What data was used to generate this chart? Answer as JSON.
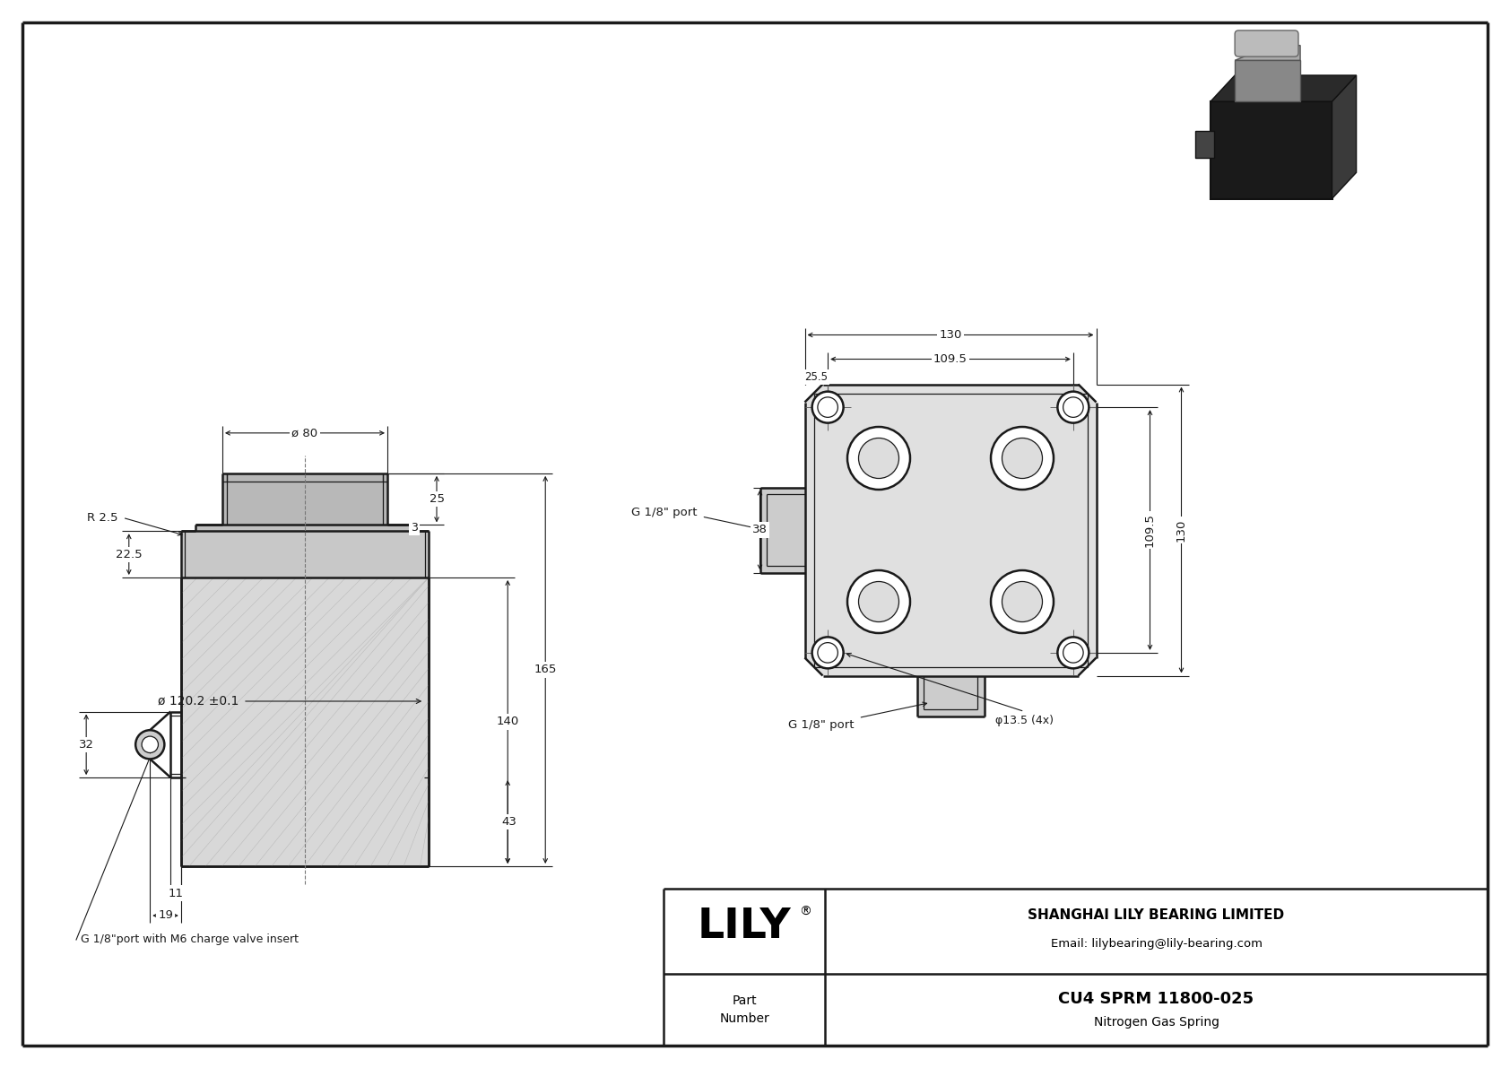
{
  "bg_color": "#ffffff",
  "line_color": "#1a1a1a",
  "title": "CU4 SPRM 11800-025",
  "subtitle": "Nitrogen Gas Spring",
  "company": "SHANGHAI LILY BEARING LIMITED",
  "email": "Email: lilybearing@lily-bearing.com",
  "part_label": "Part\nNumber",
  "dims_left": {
    "phi80": "ø 80",
    "phi120": "ø 120.2 ±0.1",
    "d165": "165",
    "d140": "140",
    "d43": "43",
    "d25": "25",
    "d3": "3",
    "d22_5": "22.5",
    "dR2_5": "R 2.5",
    "d32": "32",
    "d19": "19",
    "d11": "11",
    "port_label": "G 1/8\"port with M6 charge valve insert"
  },
  "dims_right": {
    "d130": "130",
    "d109_5_h": "109.5",
    "d25_5": "25.5",
    "d38": "38",
    "d109_5_v": "109.5",
    "d130_v": "130",
    "dphi13_5": "φ13.5 (4x)",
    "port_top": "G 1/8\" port",
    "port_bot": "G 1/8\" port"
  }
}
